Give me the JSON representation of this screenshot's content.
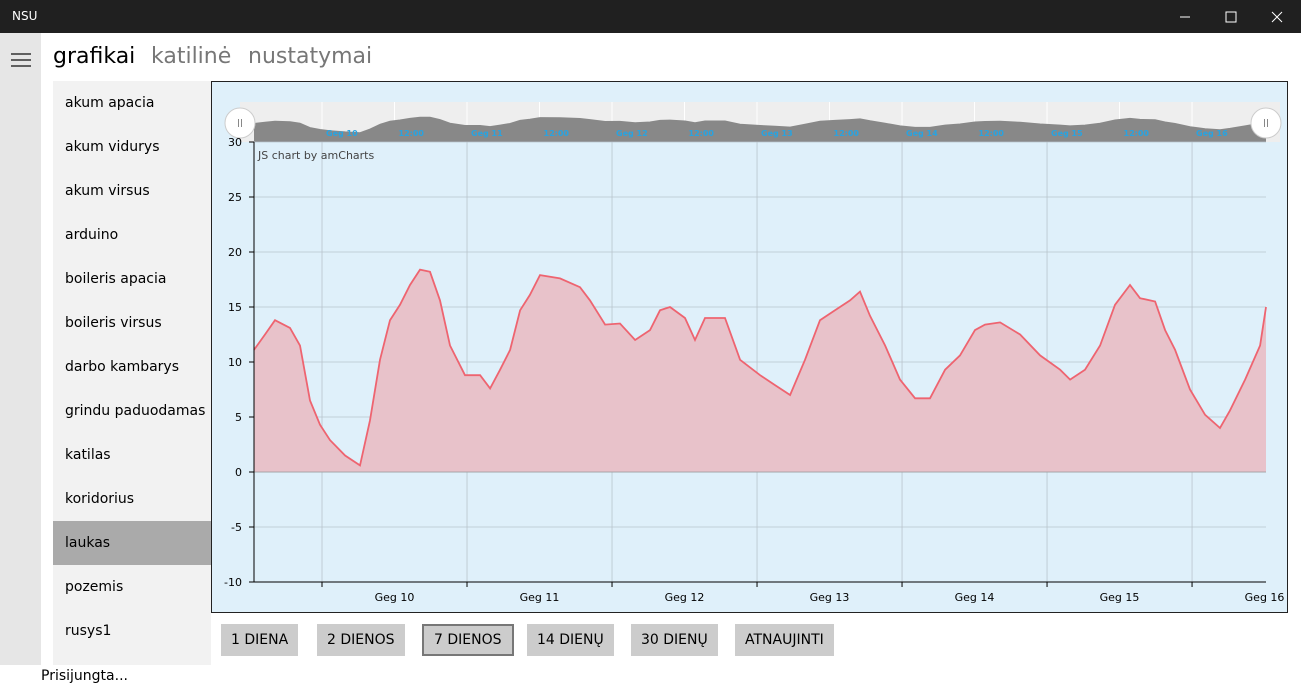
{
  "window": {
    "title": "NSU"
  },
  "tabs": [
    "grafikai",
    "katilinė",
    "nustatymai"
  ],
  "active_tab": 0,
  "sidebar": {
    "items": [
      "akum apacia",
      "akum vidurys",
      "akum virsus",
      "arduino",
      "boileris apacia",
      "boileris virsus",
      "darbo kambarys",
      "grindu paduodamas",
      "katilas",
      "koridorius",
      "laukas",
      "pozemis",
      "rusys1"
    ],
    "selected": 10
  },
  "buttons": [
    "1 DIENA",
    "2 DIENOS",
    "7 DIENOS",
    "14 DIENŲ",
    "30 DIENŲ",
    "ATNAUJINTI"
  ],
  "active_button": 2,
  "status": "Prisijungta...",
  "chart_data": {
    "type": "area",
    "credit": "JS chart by amCharts",
    "color": "#ee6470",
    "fill": "#e8c2ca",
    "grid": true,
    "x": [
      9.531,
      9.607,
      9.676,
      9.779,
      9.848,
      9.917,
      9.986,
      10.055,
      10.159,
      10.262,
      10.331,
      10.4,
      10.469,
      10.538,
      10.607,
      10.676,
      10.745,
      10.814,
      10.883,
      10.986,
      11.09,
      11.159,
      11.228,
      11.297,
      11.366,
      11.434,
      11.503,
      11.641,
      11.779,
      11.848,
      11.952,
      12.055,
      12.159,
      12.262,
      12.331,
      12.4,
      12.503,
      12.572,
      12.641,
      12.779,
      12.883,
      13.021,
      13.124,
      13.228,
      13.331,
      13.434,
      13.538,
      13.641,
      13.71,
      13.779,
      13.883,
      13.986,
      14.09,
      14.193,
      14.297,
      14.4,
      14.503,
      14.572,
      14.676,
      14.814,
      14.952,
      15.09,
      15.159,
      15.262,
      15.366,
      15.469,
      15.572,
      15.641,
      15.745,
      15.814,
      15.883,
      15.986,
      16.09,
      16.193,
      16.262,
      16.366,
      16.469,
      16.51
    ],
    "values": [
      11.1,
      12.5,
      13.8,
      13.1,
      11.5,
      6.5,
      4.3,
      2.9,
      1.5,
      0.6,
      4.7,
      10.2,
      13.8,
      15.2,
      17,
      18.4,
      18.2,
      15.6,
      11.5,
      8.8,
      8.8,
      7.6,
      9.3,
      11.1,
      14.7,
      16.1,
      17.9,
      17.6,
      16.8,
      15.6,
      13.4,
      13.5,
      12,
      12.9,
      14.7,
      15,
      14,
      12,
      14,
      14,
      10.2,
      8.8,
      7.9,
      7,
      10.2,
      13.8,
      14.7,
      15.6,
      16.4,
      14.2,
      11.5,
      8.4,
      6.7,
      6.7,
      9.3,
      10.6,
      12.9,
      13.4,
      13.6,
      12.5,
      10.6,
      9.3,
      8.4,
      9.3,
      11.5,
      15.2,
      17,
      15.8,
      15.5,
      12.9,
      11.1,
      7.5,
      5.2,
      4,
      5.6,
      8.4,
      11.5,
      15
    ],
    "xlim": [
      9.531,
      16.51
    ],
    "xticks": [
      {
        "value": 10,
        "label": "Geg 10"
      },
      {
        "value": 11,
        "label": "Geg 11"
      },
      {
        "value": 12,
        "label": "Geg 12"
      },
      {
        "value": 13,
        "label": "Geg 13"
      },
      {
        "value": 14,
        "label": "Geg 14"
      },
      {
        "value": 15,
        "label": "Geg 15"
      },
      {
        "value": 16,
        "label": "Geg 16"
      }
    ],
    "ylim": [
      -10,
      30
    ],
    "yticks": [
      -10,
      -5,
      0,
      5,
      10,
      15,
      20,
      25,
      30
    ],
    "scrollbar_ticks": [
      {
        "value": 10,
        "label": "Geg 10"
      },
      {
        "value": 10.5,
        "label": "12:00"
      },
      {
        "value": 11,
        "label": "Geg 11"
      },
      {
        "value": 11.5,
        "label": "12:00"
      },
      {
        "value": 12,
        "label": "Geg 12"
      },
      {
        "value": 12.5,
        "label": "12:00"
      },
      {
        "value": 13,
        "label": "Geg 13"
      },
      {
        "value": 13.5,
        "label": "12:00"
      },
      {
        "value": 14,
        "label": "Geg 14"
      },
      {
        "value": 14.5,
        "label": "12:00"
      },
      {
        "value": 15,
        "label": "Geg 15"
      },
      {
        "value": 15.5,
        "label": "12:00"
      },
      {
        "value": 16,
        "label": "Geg 16"
      }
    ]
  }
}
